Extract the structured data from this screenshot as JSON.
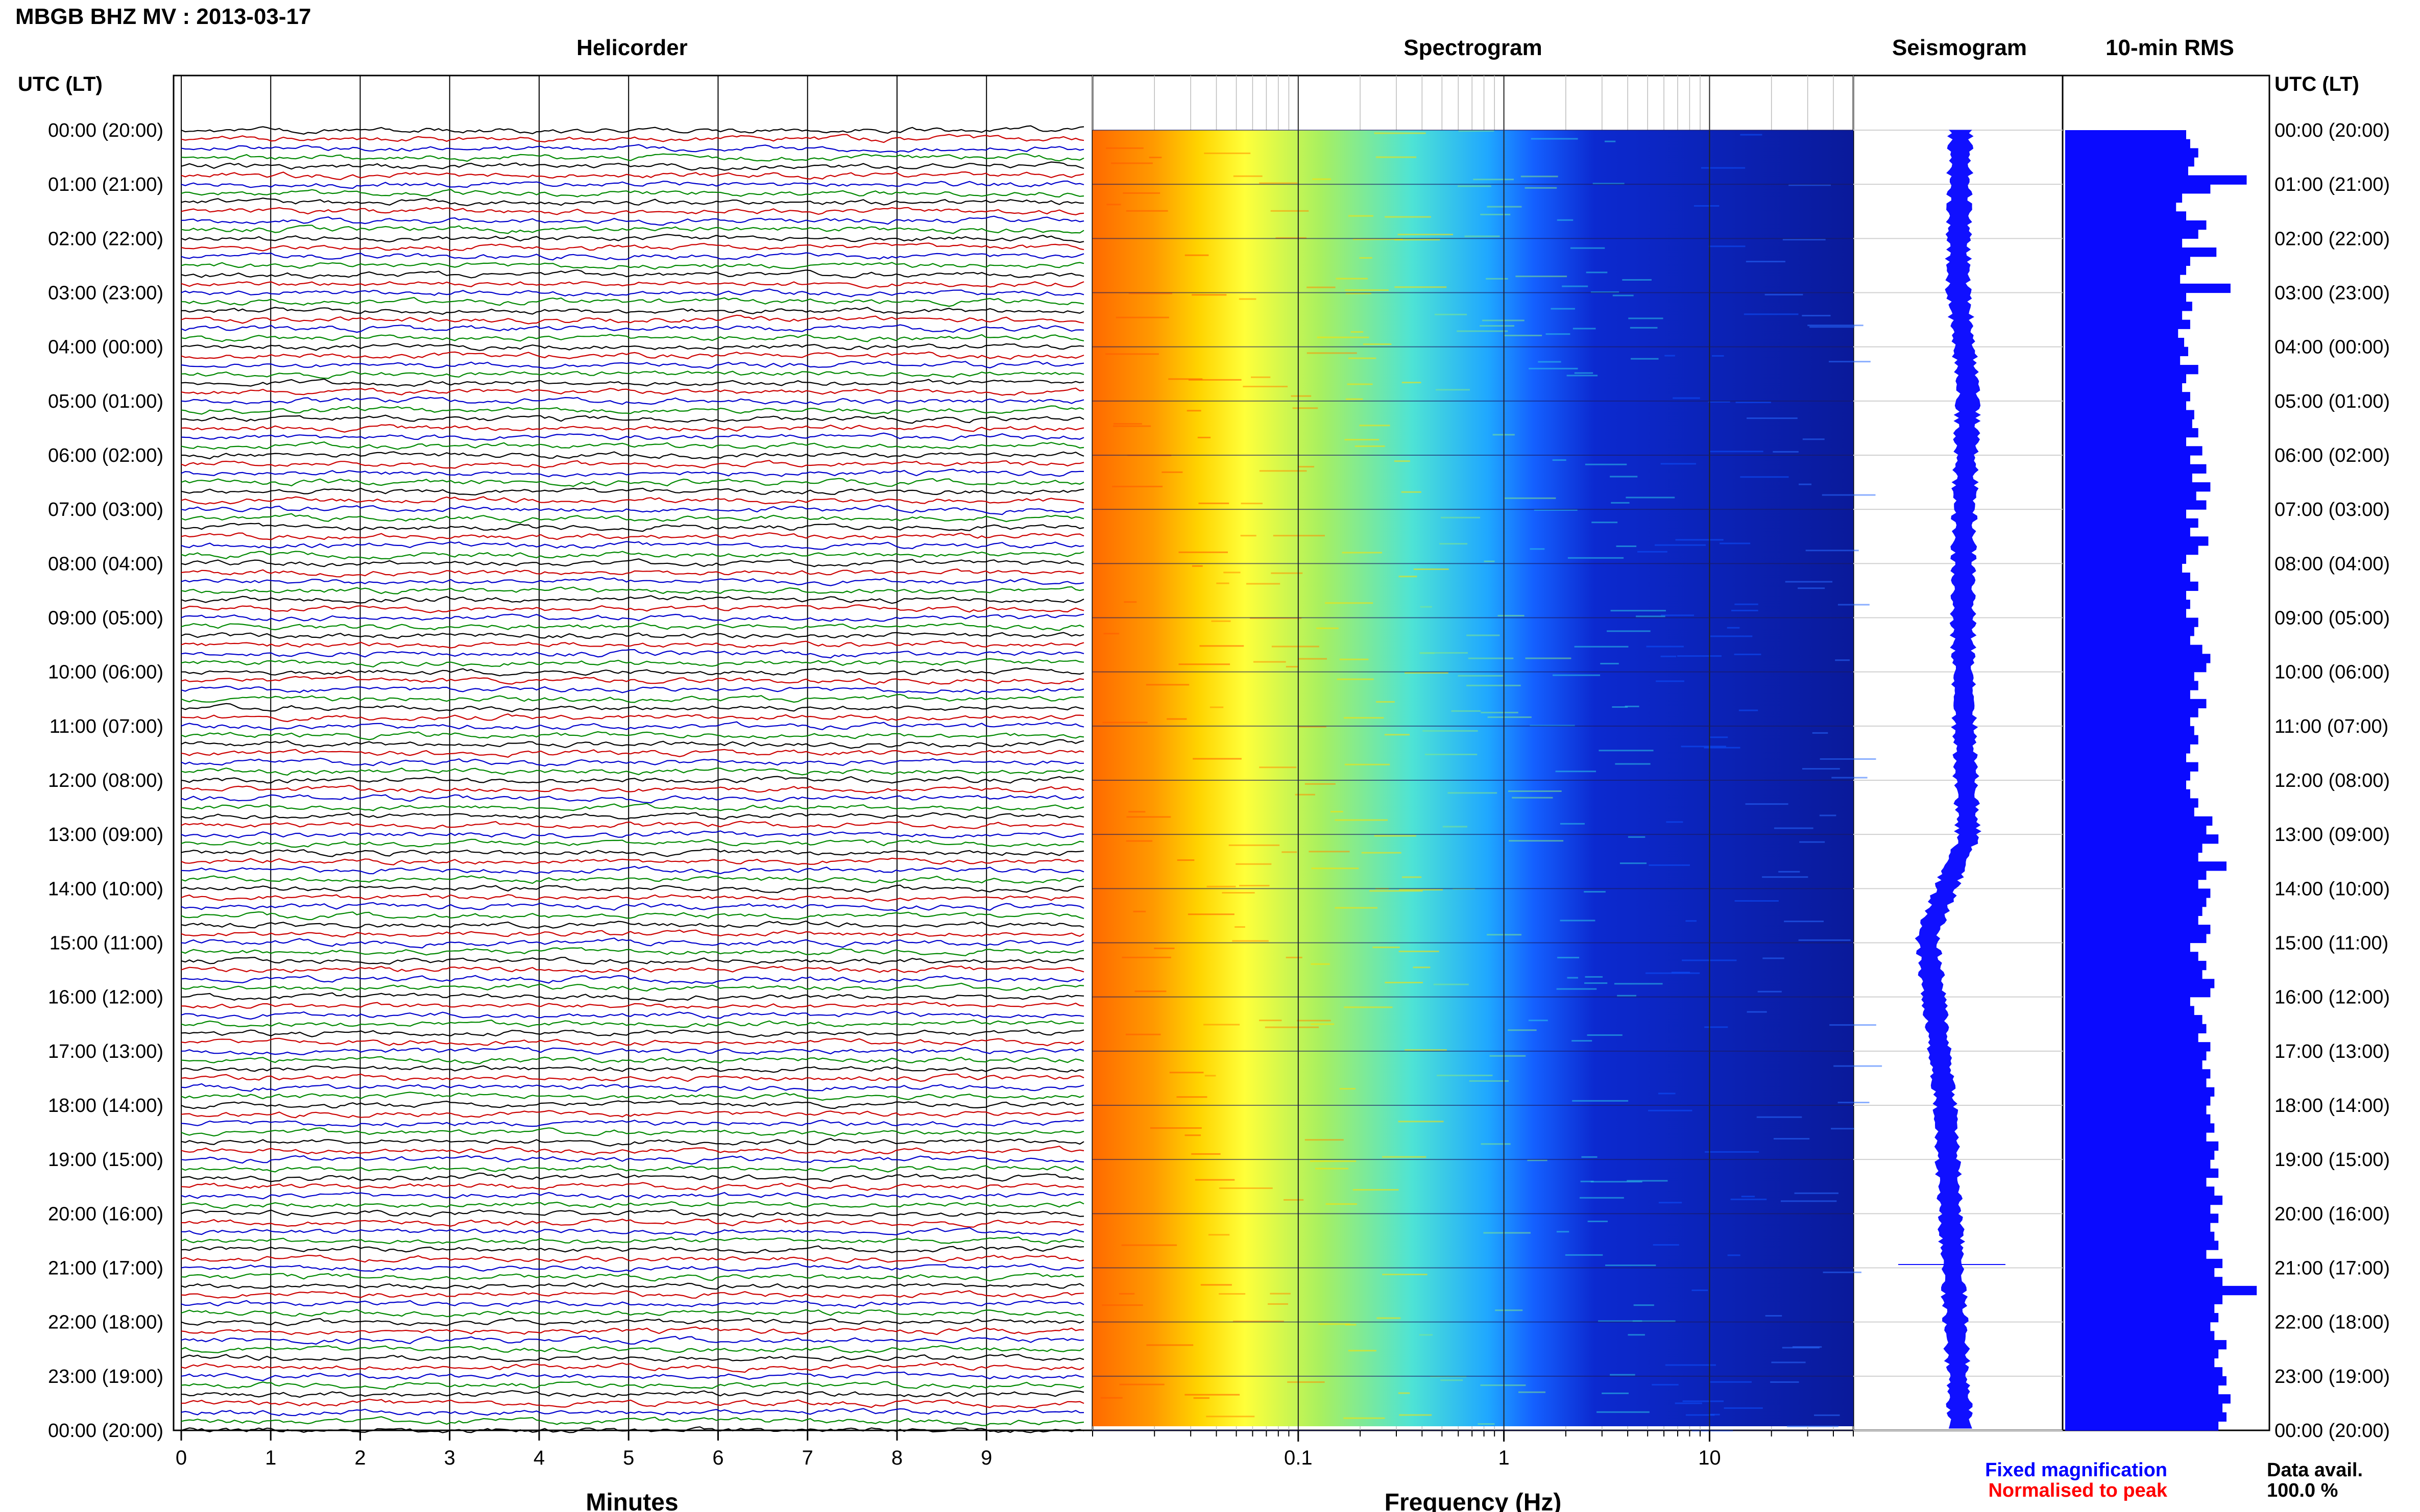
{
  "header": {
    "title": "MBGB BHZ MV : 2013-03-17",
    "left_axis_label": "UTC (LT)",
    "right_axis_label": "UTC (LT)"
  },
  "panels": {
    "helicorder": "Helicorder",
    "spectrogram": "Spectrogram",
    "seismogram": "Seismogram",
    "rms": "10-min RMS"
  },
  "time_labels": [
    "00:00 (20:00)",
    "01:00 (21:00)",
    "02:00 (22:00)",
    "03:00 (23:00)",
    "04:00 (00:00)",
    "05:00 (01:00)",
    "06:00 (02:00)",
    "07:00 (03:00)",
    "08:00 (04:00)",
    "09:00 (05:00)",
    "10:00 (06:00)",
    "11:00 (07:00)",
    "12:00 (08:00)",
    "13:00 (09:00)",
    "14:00 (10:00)",
    "15:00 (11:00)",
    "16:00 (12:00)",
    "17:00 (13:00)",
    "18:00 (14:00)",
    "19:00 (15:00)",
    "20:00 (16:00)",
    "21:00 (17:00)",
    "22:00 (18:00)",
    "23:00 (19:00)",
    "00:00 (20:00)"
  ],
  "legend": {
    "fixed": "Fixed magnification",
    "normalised": "Normalised to peak",
    "fixed_color": "#0000ff",
    "normalised_color": "#ff0000",
    "availability_label": "Data avail.",
    "availability_value": "100.0 %"
  },
  "colors": {
    "trace_cycle": [
      "#000000",
      "#cc0000",
      "#0000cc",
      "#008800"
    ],
    "seismogram": "#1010ff",
    "rms": "#0a0aff"
  },
  "chart_data": [
    {
      "type": "line",
      "name": "helicorder",
      "title": "Helicorder",
      "xlabel": "Minutes",
      "xlim": [
        0,
        10
      ],
      "xticks": [
        0,
        1,
        2,
        3,
        4,
        5,
        6,
        7,
        8,
        9
      ],
      "ylim": [
        "00:00",
        "24:00"
      ],
      "lines_per_hour": 6,
      "line_count": 144,
      "grid": true
    },
    {
      "type": "heatmap",
      "name": "spectrogram",
      "title": "Spectrogram",
      "xlabel": "Frequency (Hz)",
      "xscale": "log",
      "xlim": [
        0.01,
        50
      ],
      "xticks": [
        0.1,
        1,
        10
      ],
      "colormap": [
        "#ff6a00",
        "#ffb000",
        "#ffff33",
        "#a8f060",
        "#4ee3d5",
        "#1fa7ff",
        "#1060ff",
        "#0a1a9a"
      ]
    },
    {
      "type": "line",
      "name": "seismogram",
      "title": "Seismogram",
      "xticks": []
    },
    {
      "type": "bar",
      "name": "rms",
      "title": "10-min RMS",
      "orientation": "horizontal",
      "bin_minutes": 10,
      "values": [
        0.6,
        0.62,
        0.66,
        0.64,
        0.61,
        0.9,
        0.72,
        0.58,
        0.55,
        0.6,
        0.7,
        0.66,
        0.58,
        0.75,
        0.62,
        0.6,
        0.57,
        0.82,
        0.6,
        0.63,
        0.58,
        0.62,
        0.56,
        0.59,
        0.61,
        0.57,
        0.66,
        0.6,
        0.58,
        0.62,
        0.6,
        0.64,
        0.63,
        0.66,
        0.6,
        0.68,
        0.62,
        0.7,
        0.63,
        0.72,
        0.65,
        0.7,
        0.6,
        0.66,
        0.62,
        0.71,
        0.66,
        0.6,
        0.58,
        0.62,
        0.66,
        0.6,
        0.62,
        0.6,
        0.66,
        0.64,
        0.62,
        0.68,
        0.72,
        0.7,
        0.64,
        0.66,
        0.62,
        0.7,
        0.66,
        0.62,
        0.64,
        0.66,
        0.62,
        0.6,
        0.66,
        0.62,
        0.6,
        0.62,
        0.66,
        0.64,
        0.73,
        0.7,
        0.76,
        0.68,
        0.66,
        0.8,
        0.7,
        0.66,
        0.72,
        0.7,
        0.68,
        0.66,
        0.72,
        0.7,
        0.62,
        0.66,
        0.7,
        0.68,
        0.74,
        0.72,
        0.62,
        0.64,
        0.68,
        0.7,
        0.66,
        0.72,
        0.7,
        0.68,
        0.72,
        0.7,
        0.74,
        0.72,
        0.7,
        0.72,
        0.74,
        0.7,
        0.76,
        0.74,
        0.72,
        0.76,
        0.7,
        0.74,
        0.78,
        0.72,
        0.76,
        0.72,
        0.74,
        0.76,
        0.7,
        0.78,
        0.74,
        0.78,
        0.95,
        0.78,
        0.74,
        0.76,
        0.72,
        0.74,
        0.8,
        0.76,
        0.74,
        0.78,
        0.8,
        0.76,
        0.82,
        0.78,
        0.8,
        0.76
      ]
    }
  ]
}
